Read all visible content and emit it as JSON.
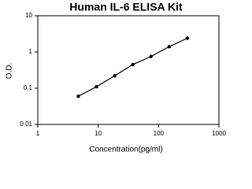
{
  "chart_data": {
    "type": "line",
    "title": "Human IL-6 ELISA Kit",
    "x_label": "Concentration(pg/ml)",
    "y_label": "O.D.",
    "x": [
      4.69,
      9.38,
      18.75,
      37.5,
      75,
      150,
      300
    ],
    "values": [
      0.06,
      0.11,
      0.22,
      0.45,
      0.75,
      1.4,
      2.4
    ],
    "color": "#000000",
    "log_x": true,
    "log_y": true,
    "xlim": [
      1,
      1000
    ],
    "xticks": [
      1,
      10,
      100,
      1000
    ],
    "ylim": [
      0.01,
      10
    ],
    "yticks": [
      0.01,
      0.1,
      1,
      10
    ]
  }
}
